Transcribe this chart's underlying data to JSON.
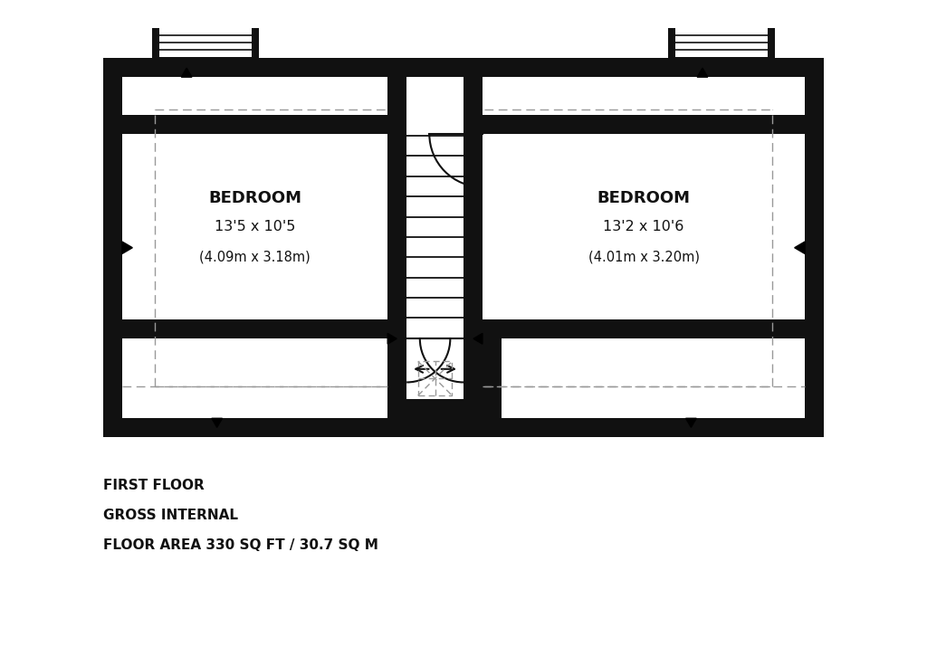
{
  "bg_color": "#ffffff",
  "wall_color": "#111111",
  "dashed_color": "#999999",
  "text_color": "#111111",
  "bedroom1_label": "BEDROOM",
  "bedroom1_dim": "13'5 x 10'5",
  "bedroom1_metric": "(4.09m x 3.18m)",
  "bedroom2_label": "BEDROOM",
  "bedroom2_dim": "13'2 x 10'6",
  "bedroom2_metric": "(4.01m x 3.20m)",
  "title_lines": [
    "FIRST FLOOR",
    "GROSS INTERNAL",
    "FLOOR AREA 330 SQ FT / 30.7 SQ M"
  ]
}
